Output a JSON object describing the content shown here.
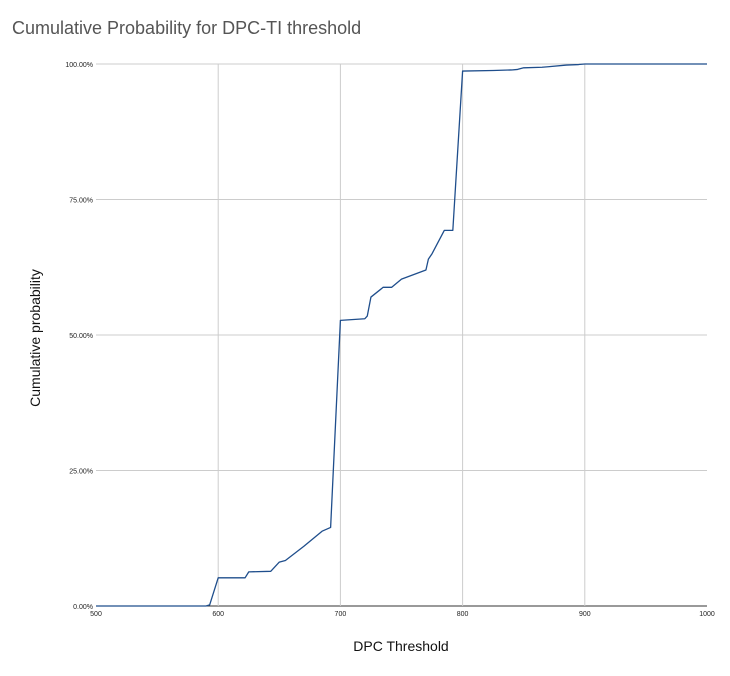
{
  "chart_data": {
    "type": "line",
    "title": "Cumulative Probability for DPC-TI threshold",
    "xlabel": "DPC Threshold",
    "ylabel": "Cumulative probability",
    "xlim": [
      500,
      1000
    ],
    "ylim": [
      0,
      1
    ],
    "x_ticks": [
      500,
      600,
      700,
      800,
      900,
      1000
    ],
    "x_tick_labels": [
      "500",
      "600",
      "700",
      "800",
      "900",
      "1000"
    ],
    "y_ticks": [
      0,
      0.25,
      0.5,
      0.75,
      1
    ],
    "y_tick_labels": [
      "0.00%",
      "25.00%",
      "50.00%",
      "75.00%",
      "100.00%"
    ],
    "grid": true,
    "legend": "none",
    "series": [
      {
        "color": "#1f4e8c",
        "x": [
          500,
          590,
          593,
          600,
          622,
          625,
          643,
          650,
          655,
          670,
          685,
          692,
          700,
          720,
          722,
          725,
          735,
          742,
          750,
          770,
          772,
          775,
          785,
          792,
          800,
          825,
          840,
          845,
          850,
          865,
          870,
          885,
          895,
          900,
          1000
        ],
        "y": [
          0,
          0,
          0.002,
          0.052,
          0.052,
          0.063,
          0.064,
          0.081,
          0.084,
          0.11,
          0.138,
          0.145,
          0.527,
          0.53,
          0.535,
          0.57,
          0.588,
          0.588,
          0.603,
          0.62,
          0.64,
          0.65,
          0.693,
          0.693,
          0.987,
          0.988,
          0.989,
          0.99,
          0.993,
          0.994,
          0.995,
          0.998,
          0.999,
          1.0,
          1.0
        ]
      }
    ]
  }
}
